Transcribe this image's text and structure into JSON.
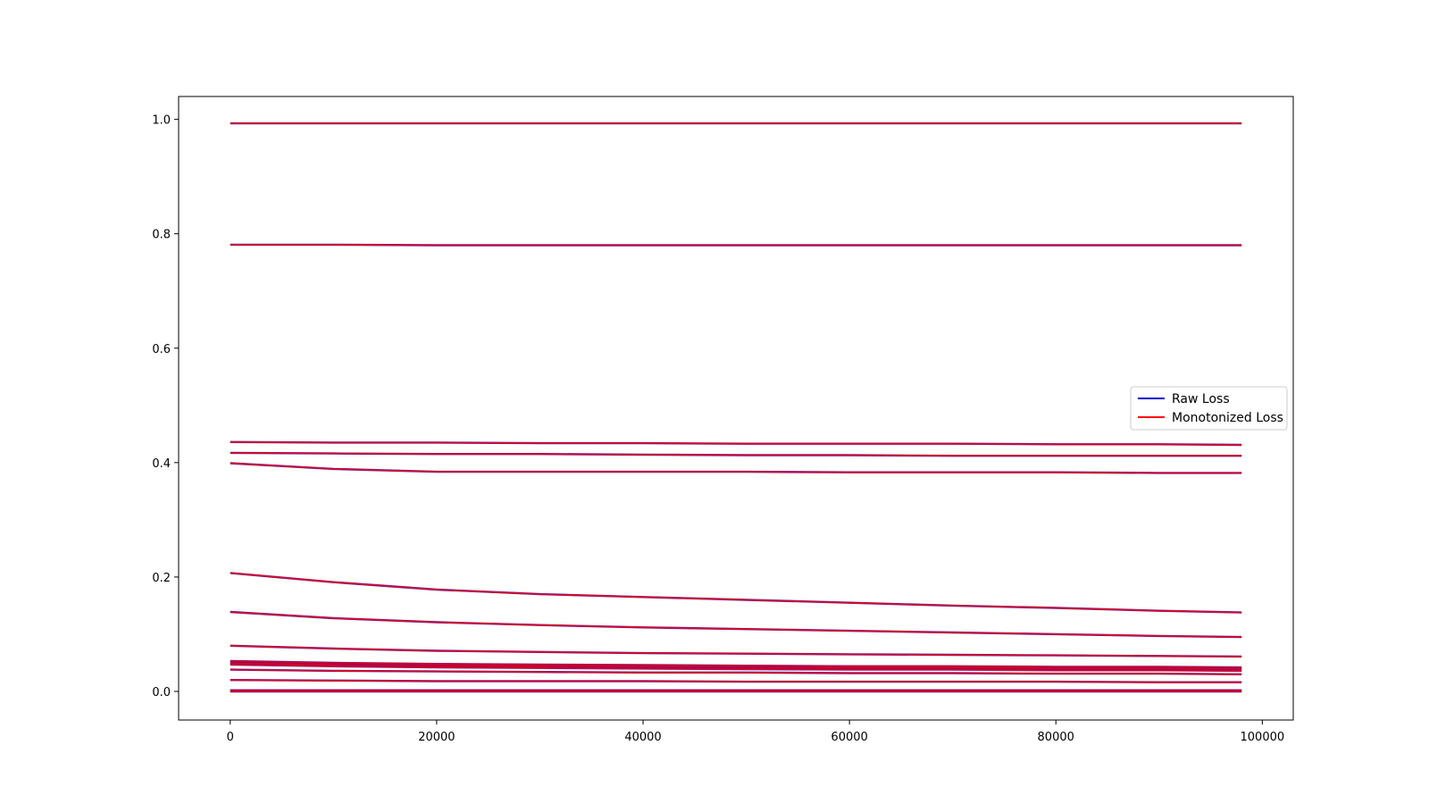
{
  "chart_data": {
    "type": "line",
    "title": "",
    "xlabel": "",
    "ylabel": "",
    "xlim": [
      -5000,
      103000
    ],
    "ylim": [
      -0.05,
      1.04
    ],
    "xticks": [
      0,
      20000,
      40000,
      60000,
      80000,
      100000
    ],
    "xtick_labels": [
      "0",
      "20000",
      "40000",
      "60000",
      "80000",
      "100000"
    ],
    "yticks": [
      0.0,
      0.2,
      0.4,
      0.6,
      0.8,
      1.0
    ],
    "ytick_labels": [
      "0.0",
      "0.2",
      "0.4",
      "0.6",
      "0.8",
      "1.0"
    ],
    "grid": false,
    "legend": {
      "position": "center-right",
      "entries": [
        {
          "label": "Raw Loss",
          "color": "#0000cc"
        },
        {
          "label": "Monotonized Loss",
          "color": "#ff0000"
        }
      ]
    },
    "x": [
      0,
      10000,
      20000,
      30000,
      40000,
      50000,
      60000,
      70000,
      80000,
      90000,
      98000
    ],
    "series": [
      {
        "values": [
          0.993,
          0.993,
          0.993,
          0.993,
          0.993,
          0.993,
          0.993,
          0.993,
          0.993,
          0.993,
          0.993
        ]
      },
      {
        "values": [
          0.781,
          0.781,
          0.78,
          0.78,
          0.78,
          0.78,
          0.78,
          0.78,
          0.78,
          0.78,
          0.78
        ]
      },
      {
        "values": [
          0.436,
          0.435,
          0.435,
          0.434,
          0.434,
          0.433,
          0.433,
          0.433,
          0.432,
          0.432,
          0.431
        ]
      },
      {
        "values": [
          0.417,
          0.416,
          0.415,
          0.415,
          0.414,
          0.413,
          0.413,
          0.412,
          0.412,
          0.412,
          0.412
        ]
      },
      {
        "values": [
          0.399,
          0.389,
          0.384,
          0.384,
          0.384,
          0.384,
          0.383,
          0.383,
          0.383,
          0.382,
          0.382
        ]
      },
      {
        "values": [
          0.207,
          0.191,
          0.178,
          0.17,
          0.165,
          0.16,
          0.155,
          0.15,
          0.146,
          0.141,
          0.138
        ]
      },
      {
        "values": [
          0.139,
          0.128,
          0.121,
          0.116,
          0.112,
          0.109,
          0.106,
          0.103,
          0.1,
          0.097,
          0.095
        ]
      },
      {
        "values": [
          0.08,
          0.075,
          0.071,
          0.069,
          0.067,
          0.066,
          0.065,
          0.064,
          0.063,
          0.062,
          0.061
        ]
      },
      {
        "values": [
          0.053,
          0.05,
          0.048,
          0.047,
          0.046,
          0.045,
          0.044,
          0.044,
          0.043,
          0.043,
          0.042
        ]
      },
      {
        "values": [
          0.05,
          0.047,
          0.045,
          0.044,
          0.043,
          0.042,
          0.041,
          0.041,
          0.04,
          0.04,
          0.039
        ]
      },
      {
        "values": [
          0.047,
          0.044,
          0.042,
          0.041,
          0.04,
          0.039,
          0.038,
          0.038,
          0.037,
          0.037,
          0.036
        ]
      },
      {
        "values": [
          0.038,
          0.036,
          0.035,
          0.034,
          0.033,
          0.033,
          0.032,
          0.032,
          0.031,
          0.031,
          0.03
        ]
      },
      {
        "values": [
          0.02,
          0.019,
          0.018,
          0.018,
          0.018,
          0.017,
          0.017,
          0.017,
          0.017,
          0.016,
          0.016
        ]
      },
      {
        "values": [
          0.002,
          0.002,
          0.002,
          0.002,
          0.002,
          0.002,
          0.002,
          0.002,
          0.002,
          0.002,
          0.002
        ]
      },
      {
        "values": [
          0.0,
          0.0,
          0.0,
          0.0,
          0.0,
          0.0,
          0.0,
          0.0,
          0.0,
          0.0,
          0.0
        ]
      }
    ]
  }
}
